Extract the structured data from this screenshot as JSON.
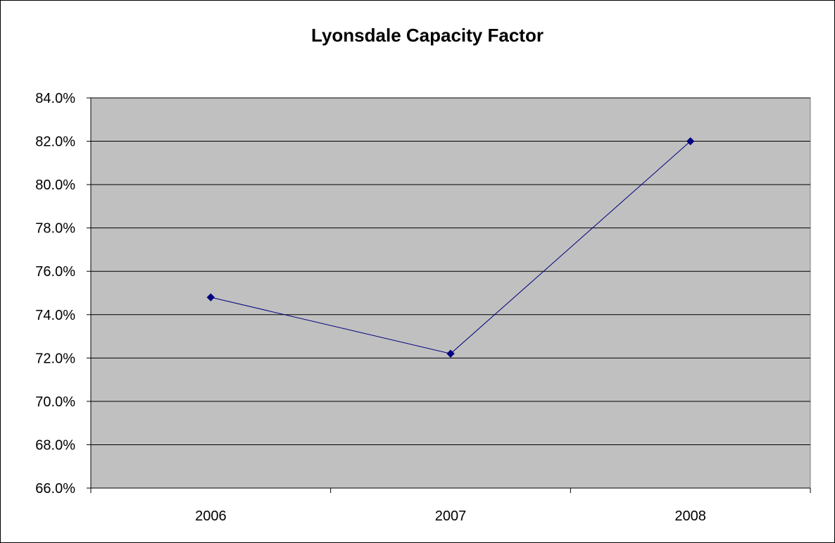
{
  "chart_data": {
    "type": "line",
    "title": "Lyonsdale Capacity Factor",
    "xlabel": "",
    "ylabel": "",
    "categories": [
      "2006",
      "2007",
      "2008"
    ],
    "series": [
      {
        "values": [
          74.8,
          72.2,
          82.0
        ],
        "color": "#000080",
        "marker": "diamond"
      }
    ],
    "ylim": [
      66.0,
      84.0
    ],
    "ytick_step": 2.0,
    "ytick_labels": [
      "66.0%",
      "68.0%",
      "70.0%",
      "72.0%",
      "74.0%",
      "76.0%",
      "78.0%",
      "80.0%",
      "82.0%",
      "84.0%"
    ],
    "grid": true,
    "legend": "none",
    "plot_background": "#C0C0C0",
    "gridline_color": "#000000"
  }
}
